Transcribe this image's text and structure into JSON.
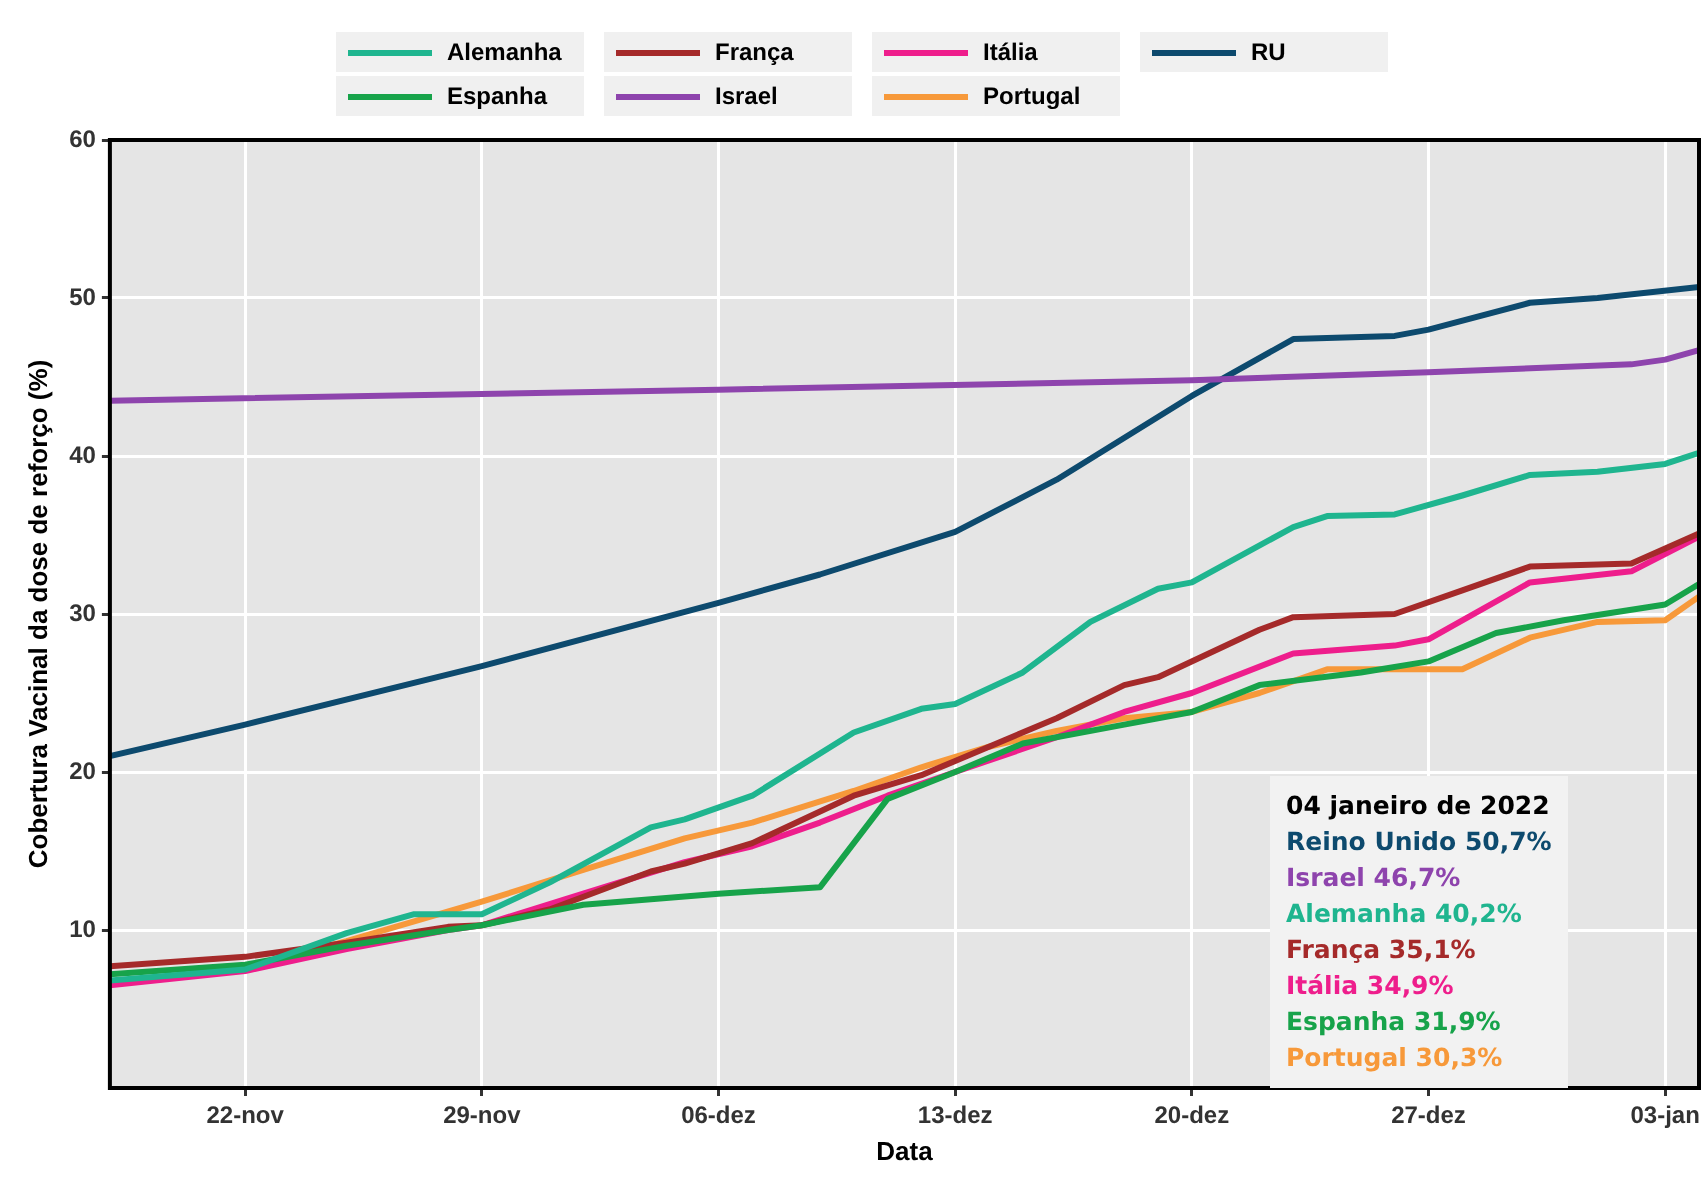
{
  "chart_data": {
    "type": "line",
    "xlabel": "Data",
    "ylabel": "Cobertura Vacinal da dose de reforço (%)",
    "xlim": [
      "2021-11-18",
      "2022-01-04"
    ],
    "xticks": [
      {
        "value": "2021-11-22",
        "label": "22-nov"
      },
      {
        "value": "2021-11-29",
        "label": "29-nov"
      },
      {
        "value": "2021-12-06",
        "label": "06-dez"
      },
      {
        "value": "2021-12-13",
        "label": "13-dez"
      },
      {
        "value": "2021-12-20",
        "label": "20-dez"
      },
      {
        "value": "2021-12-27",
        "label": "27-dez"
      },
      {
        "value": "2022-01-03",
        "label": "03-jan"
      }
    ],
    "ylim": [
      0,
      60
    ],
    "yticks": [
      10,
      20,
      30,
      40,
      50,
      60
    ],
    "grid": true,
    "legend": "top",
    "marker": "none",
    "line_style": "solid",
    "series": [
      {
        "name": "Alemanha",
        "color": "#1fb58f",
        "x": [
          "2021-11-18",
          "2021-11-22",
          "2021-11-25",
          "2021-11-27",
          "2021-11-29",
          "2021-12-01",
          "2021-12-04",
          "2021-12-05",
          "2021-12-07",
          "2021-12-10",
          "2021-12-12",
          "2021-12-13",
          "2021-12-15",
          "2021-12-17",
          "2021-12-19",
          "2021-12-20",
          "2021-12-23",
          "2021-12-24",
          "2021-12-26",
          "2021-12-28",
          "2021-12-30",
          "2022-01-01",
          "2022-01-03",
          "2022-01-04"
        ],
        "values": [
          6.8,
          7.5,
          9.8,
          11.0,
          11.0,
          13.0,
          16.5,
          17.0,
          18.5,
          22.5,
          24.0,
          24.3,
          26.3,
          29.5,
          31.6,
          32.0,
          35.5,
          36.2,
          36.3,
          37.5,
          38.8,
          39.0,
          39.5,
          40.2
        ]
      },
      {
        "name": "Espanha",
        "color": "#17a34a",
        "x": [
          "2021-11-18",
          "2021-11-22",
          "2021-11-25",
          "2021-11-28",
          "2021-11-29",
          "2021-12-02",
          "2021-12-06",
          "2021-12-09",
          "2021-12-11",
          "2021-12-13",
          "2021-12-15",
          "2021-12-18",
          "2021-12-20",
          "2021-12-22",
          "2021-12-25",
          "2021-12-27",
          "2021-12-29",
          "2021-12-31",
          "2022-01-03",
          "2022-01-04"
        ],
        "values": [
          7.2,
          7.8,
          9.0,
          10.0,
          10.3,
          11.6,
          12.3,
          12.7,
          18.3,
          20.0,
          21.8,
          23.0,
          23.8,
          25.5,
          26.3,
          27.0,
          28.8,
          29.6,
          30.6,
          31.9
        ]
      },
      {
        "name": "França",
        "color": "#a52a2a",
        "x": [
          "2021-11-18",
          "2021-11-22",
          "2021-11-25",
          "2021-11-28",
          "2021-11-29",
          "2021-12-01",
          "2021-12-04",
          "2021-12-05",
          "2021-12-07",
          "2021-12-10",
          "2021-12-12",
          "2021-12-13",
          "2021-12-16",
          "2021-12-18",
          "2021-12-19",
          "2021-12-22",
          "2021-12-23",
          "2021-12-26",
          "2021-12-28",
          "2021-12-30",
          "2022-01-02",
          "2022-01-04"
        ],
        "values": [
          7.7,
          8.3,
          9.2,
          10.2,
          10.3,
          11.3,
          13.7,
          14.2,
          15.5,
          18.5,
          19.8,
          20.7,
          23.4,
          25.5,
          26.0,
          29.0,
          29.8,
          30.0,
          31.5,
          33.0,
          33.2,
          35.1
        ]
      },
      {
        "name": "Israel",
        "color": "#8e44ad",
        "x": [
          "2021-11-18",
          "2021-12-06",
          "2021-12-20",
          "2021-12-27",
          "2022-01-02",
          "2022-01-03",
          "2022-01-04"
        ],
        "values": [
          43.5,
          44.2,
          44.8,
          45.3,
          45.8,
          46.1,
          46.7
        ]
      },
      {
        "name": "Itália",
        "color": "#ee1e8c",
        "x": [
          "2021-11-18",
          "2021-11-22",
          "2021-11-25",
          "2021-11-28",
          "2021-11-29",
          "2021-12-02",
          "2021-12-05",
          "2021-12-07",
          "2021-12-09",
          "2021-12-11",
          "2021-12-13",
          "2021-12-16",
          "2021-12-18",
          "2021-12-20",
          "2021-12-23",
          "2021-12-26",
          "2021-12-27",
          "2021-12-30",
          "2022-01-02",
          "2022-01-04"
        ],
        "values": [
          6.5,
          7.4,
          8.8,
          10.0,
          10.3,
          12.3,
          14.3,
          15.3,
          16.8,
          18.5,
          20.0,
          22.2,
          23.8,
          25.0,
          27.5,
          28.0,
          28.4,
          32.0,
          32.7,
          34.9
        ]
      },
      {
        "name": "Portugal",
        "color": "#f7993a",
        "x": [
          "2021-11-22",
          "2021-11-25",
          "2021-11-29",
          "2021-12-02",
          "2021-12-05",
          "2021-12-07",
          "2021-12-10",
          "2021-12-12",
          "2021-12-14",
          "2021-12-16",
          "2021-12-18",
          "2021-12-20",
          "2021-12-22",
          "2021-12-24",
          "2021-12-28",
          "2021-12-30",
          "2022-01-01",
          "2022-01-03",
          "2022-01-04"
        ],
        "values": [
          7.6,
          9.3,
          11.8,
          13.8,
          15.8,
          16.8,
          18.8,
          20.3,
          21.6,
          22.6,
          23.4,
          23.8,
          25.0,
          26.5,
          26.5,
          28.5,
          29.5,
          29.6,
          31.1
        ]
      },
      {
        "name": "RU",
        "color": "#0d4a6e",
        "x": [
          "2021-11-18",
          "2021-11-22",
          "2021-11-29",
          "2021-12-06",
          "2021-12-09",
          "2021-12-13",
          "2021-12-16",
          "2021-12-20",
          "2021-12-23",
          "2021-12-26",
          "2021-12-27",
          "2021-12-30",
          "2022-01-01",
          "2022-01-04"
        ],
        "values": [
          21.0,
          23.0,
          26.7,
          30.7,
          32.5,
          35.2,
          38.5,
          43.8,
          47.4,
          47.6,
          48.0,
          49.7,
          50.0,
          50.7
        ]
      }
    ],
    "annotations": [
      "04 janeiro de 2022",
      "Reino Unido 50,7%",
      "Israel 46,7%",
      "Alemanha 40,2%",
      "França 35,1%",
      "Itália 34,9%",
      "Espanha 31,9%",
      "Portugal 30,3%"
    ]
  }
}
